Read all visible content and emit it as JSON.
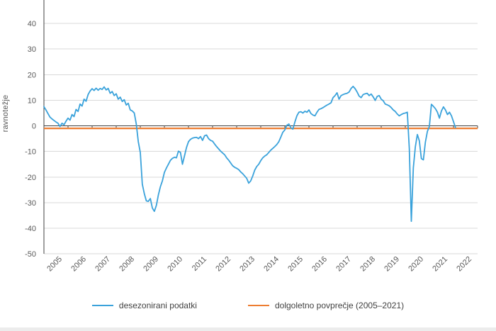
{
  "y_axis_title": "ravnotežje",
  "legend": {
    "items": [
      {
        "label": "desezonirani podatki",
        "color": "#3AA2DB"
      },
      {
        "label": "dolgoletno povprečje (2005–2021)",
        "color": "#ED7D31"
      }
    ]
  },
  "colors": {
    "series_blue": "#3AA2DB",
    "average_orange": "#ED7D31",
    "gridline": "#D9D9D9",
    "axis": "#404040",
    "tick_label": "#595959",
    "bottom_strip": "#ECECEC"
  },
  "chart_data": {
    "type": "line",
    "title": "",
    "xlabel": "",
    "ylabel": "ravnotežje",
    "ylim": [
      -50,
      50
    ],
    "y_ticks": [
      40,
      30,
      20,
      10,
      0,
      -10,
      -20,
      -30,
      -40,
      -50
    ],
    "x_tick_labels": [
      "2005",
      "2006",
      "2007",
      "2008",
      "2009",
      "2010",
      "2011",
      "2012",
      "2013",
      "2014",
      "2015",
      "2016",
      "2017",
      "2018",
      "2019",
      "2020",
      "2021",
      "2022"
    ],
    "grid": true,
    "legend_position": "bottom",
    "zero_axis": true,
    "frequency": "monthly",
    "x_start": "2005-01",
    "x_end": "2022-02",
    "series": [
      {
        "name": "desezonirani podatki",
        "color": "#3AA2DB",
        "values": [
          7.5,
          6.2,
          4.8,
          3.4,
          2.7,
          2.1,
          1.5,
          1.0,
          -0.3,
          1.0,
          0.4,
          1.8,
          3.0,
          2.2,
          4.4,
          3.6,
          6.4,
          5.6,
          8.5,
          7.7,
          10.4,
          9.6,
          12.2,
          13.6,
          14.5,
          13.8,
          14.7,
          13.9,
          14.6,
          14.2,
          15.2,
          14.0,
          14.6,
          12.7,
          13.4,
          11.8,
          12.5,
          10.4,
          11.2,
          9.5,
          10.2,
          8.1,
          8.8,
          6.2,
          5.8,
          5.0,
          0.7,
          -6.2,
          -10.4,
          -22.8,
          -26.5,
          -29.3,
          -29.5,
          -28.4,
          -32.1,
          -33.4,
          -31.1,
          -27.0,
          -23.8,
          -21.5,
          -18.2,
          -16.5,
          -15.0,
          -13.5,
          -12.7,
          -12.3,
          -12.5,
          -9.9,
          -10.4,
          -15.0,
          -11.8,
          -8.5,
          -6.2,
          -5.3,
          -4.8,
          -4.6,
          -4.5,
          -5.0,
          -4.2,
          -5.7,
          -3.9,
          -3.6,
          -5.0,
          -5.7,
          -6.0,
          -7.1,
          -8.1,
          -9.0,
          -9.9,
          -10.6,
          -11.3,
          -12.5,
          -13.4,
          -14.5,
          -15.6,
          -16.2,
          -16.6,
          -17.1,
          -18.0,
          -18.7,
          -19.6,
          -20.5,
          -22.4,
          -21.5,
          -19.6,
          -17.3,
          -15.9,
          -15.0,
          -13.6,
          -12.5,
          -11.8,
          -11.3,
          -10.4,
          -9.5,
          -8.8,
          -8.1,
          -7.3,
          -6.2,
          -4.4,
          -2.5,
          -1.6,
          0.2,
          0.7,
          -0.8,
          -1.3,
          1.5,
          3.9,
          5.3,
          5.5,
          5.0,
          5.7,
          5.3,
          6.2,
          4.8,
          4.2,
          3.9,
          5.3,
          6.4,
          6.7,
          7.1,
          7.6,
          8.1,
          8.5,
          9.0,
          11.0,
          11.8,
          12.9,
          10.4,
          11.8,
          12.2,
          12.5,
          12.7,
          13.2,
          14.6,
          15.4,
          14.5,
          13.2,
          11.6,
          11.0,
          12.2,
          12.5,
          12.7,
          11.8,
          12.4,
          11.3,
          9.9,
          11.5,
          11.8,
          10.4,
          9.8,
          8.5,
          8.2,
          7.8,
          7.1,
          6.2,
          5.6,
          4.6,
          3.9,
          4.4,
          4.8,
          5.0,
          5.3,
          -9.0,
          -37.3,
          -16.4,
          -8.2,
          -3.4,
          -5.9,
          -12.8,
          -13.3,
          -6.4,
          -2.2,
          -0.2,
          8.4,
          7.6,
          6.7,
          5.3,
          3.0,
          5.8,
          7.4,
          6.2,
          4.4,
          5.3,
          3.9,
          1.6,
          -0.7
        ]
      },
      {
        "name": "dolgoletno povprečje (2005–2021)",
        "color": "#ED7D31",
        "type": "constant",
        "value": -1.0
      }
    ]
  }
}
